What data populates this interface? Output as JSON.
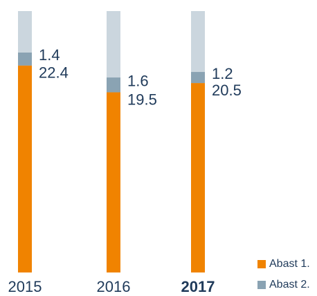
{
  "chart_data": {
    "type": "bar",
    "stacked": true,
    "categories": [
      "2015",
      "2016",
      "2017"
    ],
    "series": [
      {
        "name": "Abast 1.",
        "color": "#f08300",
        "values": [
          22.4,
          19.5,
          20.5
        ]
      },
      {
        "name": "Abast 2.",
        "color": "#8aa3b3",
        "values": [
          1.4,
          1.6,
          1.2
        ]
      }
    ]
  }
}
